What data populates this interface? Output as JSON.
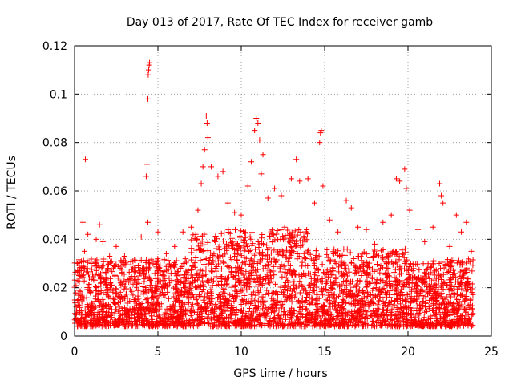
{
  "chart_data": {
    "type": "scatter",
    "title": "Day 013 of 2017, Rate Of TEC Index for receiver gamb",
    "xlabel": "GPS time / hours",
    "ylabel": "ROTI / TECUs",
    "xlim": [
      0,
      25
    ],
    "ylim": [
      0,
      0.12
    ],
    "x_ticks": [
      0,
      5,
      10,
      15,
      20,
      25
    ],
    "x_tick_labels": [
      "0",
      "5",
      "10",
      "15",
      "20",
      "25"
    ],
    "y_ticks": [
      0,
      0.02,
      0.04,
      0.06,
      0.08,
      0.1,
      0.12
    ],
    "y_tick_labels": [
      "0",
      "0.02",
      "0.04",
      "0.06",
      "0.08",
      "0.1",
      "0.12"
    ],
    "grid": true,
    "marker": "plus",
    "color": "#ff0000",
    "series": [
      {
        "name": "ROTI",
        "points": [
          [
            0.1,
            0.012
          ],
          [
            0.15,
            0.03
          ],
          [
            0.3,
            0.025
          ],
          [
            0.5,
            0.047
          ],
          [
            0.6,
            0.035
          ],
          [
            0.65,
            0.073
          ],
          [
            0.8,
            0.042
          ],
          [
            1.0,
            0.03
          ],
          [
            1.3,
            0.04
          ],
          [
            1.5,
            0.046
          ],
          [
            1.7,
            0.039
          ],
          [
            2.1,
            0.033
          ],
          [
            2.5,
            0.037
          ],
          [
            3.0,
            0.033
          ],
          [
            3.5,
            0.031
          ],
          [
            4.0,
            0.041
          ],
          [
            4.3,
            0.066
          ],
          [
            4.35,
            0.071
          ],
          [
            4.4,
            0.098
          ],
          [
            4.42,
            0.108
          ],
          [
            4.45,
            0.11
          ],
          [
            4.48,
            0.112
          ],
          [
            4.5,
            0.113
          ],
          [
            4.4,
            0.047
          ],
          [
            5.0,
            0.043
          ],
          [
            5.5,
            0.034
          ],
          [
            6.0,
            0.037
          ],
          [
            6.5,
            0.043
          ],
          [
            7.0,
            0.045
          ],
          [
            7.4,
            0.052
          ],
          [
            7.6,
            0.063
          ],
          [
            7.7,
            0.07
          ],
          [
            7.8,
            0.077
          ],
          [
            7.9,
            0.091
          ],
          [
            7.95,
            0.088
          ],
          [
            8.0,
            0.082
          ],
          [
            8.2,
            0.07
          ],
          [
            8.6,
            0.066
          ],
          [
            8.9,
            0.068
          ],
          [
            9.2,
            0.055
          ],
          [
            9.6,
            0.051
          ],
          [
            10.0,
            0.05
          ],
          [
            10.4,
            0.062
          ],
          [
            10.6,
            0.072
          ],
          [
            10.8,
            0.085
          ],
          [
            10.9,
            0.09
          ],
          [
            11.0,
            0.088
          ],
          [
            11.1,
            0.081
          ],
          [
            11.3,
            0.075
          ],
          [
            11.2,
            0.067
          ],
          [
            11.6,
            0.057
          ],
          [
            12.0,
            0.061
          ],
          [
            12.4,
            0.058
          ],
          [
            12.6,
            0.045
          ],
          [
            13.0,
            0.065
          ],
          [
            13.3,
            0.073
          ],
          [
            13.5,
            0.064
          ],
          [
            14.0,
            0.065
          ],
          [
            14.4,
            0.055
          ],
          [
            14.7,
            0.08
          ],
          [
            14.75,
            0.084
          ],
          [
            14.8,
            0.085
          ],
          [
            14.9,
            0.062
          ],
          [
            15.3,
            0.048
          ],
          [
            15.8,
            0.043
          ],
          [
            16.3,
            0.056
          ],
          [
            16.6,
            0.053
          ],
          [
            17.0,
            0.045
          ],
          [
            17.5,
            0.044
          ],
          [
            18.0,
            0.038
          ],
          [
            18.5,
            0.047
          ],
          [
            19.0,
            0.05
          ],
          [
            19.3,
            0.065
          ],
          [
            19.5,
            0.064
          ],
          [
            19.8,
            0.069
          ],
          [
            19.9,
            0.061
          ],
          [
            20.1,
            0.052
          ],
          [
            20.6,
            0.044
          ],
          [
            21.0,
            0.039
          ],
          [
            21.5,
            0.045
          ],
          [
            21.9,
            0.063
          ],
          [
            22.0,
            0.058
          ],
          [
            22.1,
            0.055
          ],
          [
            22.5,
            0.037
          ],
          [
            22.9,
            0.05
          ],
          [
            23.2,
            0.043
          ],
          [
            23.5,
            0.047
          ],
          [
            23.8,
            0.035
          ]
        ]
      }
    ]
  }
}
